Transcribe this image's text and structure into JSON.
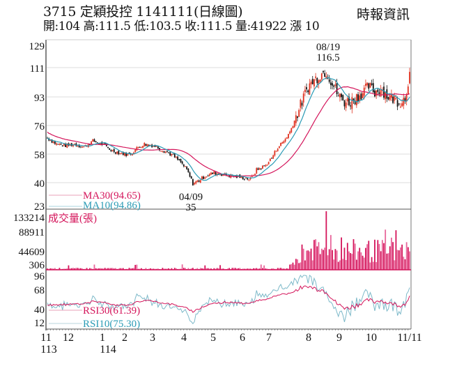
{
  "header": {
    "title": "3715  定穎投控 1141111(日線圖)",
    "quote": "開:104 高:111.5 低:103.5 收:111.5 量:41922 漲 10",
    "source": "時報資訊"
  },
  "colors": {
    "up": "#e0301e",
    "down": "#111111",
    "ma30": "#d4145a",
    "ma10": "#2a9bb5",
    "rsi30": "#d4145a",
    "rsi10": "#6fb2c4",
    "volume": "#e0306e",
    "grid": "#d8d8d8",
    "frame": "#555555"
  },
  "chart_data": [
    {
      "type": "candlestick",
      "title": "3715 定穎投控 1141111(日線圖)",
      "ylim": [
        23,
        129
      ],
      "yticks": [
        129,
        111,
        93,
        76,
        58,
        40,
        23
      ],
      "x_month_labels": [
        "11",
        "12",
        "1",
        "2",
        "3",
        "4",
        "5",
        "6",
        "7",
        "8",
        "9",
        "10",
        "11/11"
      ],
      "x_year_labels": [
        "113",
        "114"
      ],
      "annotations": [
        {
          "label": "08/19",
          "value": "116.5",
          "type": "high"
        },
        {
          "label": "04/09",
          "value": "35",
          "type": "low"
        }
      ],
      "legend": [
        {
          "name": "MA30",
          "value": "MA30(94.65)"
        },
        {
          "name": "MA10",
          "value": "MA10(94.86)"
        }
      ],
      "last_bar": {
        "open": 104,
        "high": 111.5,
        "low": 103.5,
        "close": 111.5,
        "volume": 41922,
        "change": 10
      },
      "close_series_monthly_approx": {
        "months": [
          "11",
          "12",
          "1",
          "2",
          "3",
          "4",
          "5",
          "6",
          "7",
          "8",
          "9",
          "10",
          "11/11"
        ],
        "close": [
          68,
          64,
          62,
          60,
          63,
          50,
          42,
          43,
          41,
          90,
          110,
          96,
          111.5
        ]
      },
      "ma30_series_approx": [
        72,
        69,
        65,
        62,
        60,
        61,
        58,
        52,
        45,
        42,
        43,
        42,
        43,
        60,
        85,
        96,
        94.65
      ],
      "ma10_series_approx": [
        68,
        64,
        63,
        64,
        59,
        61,
        63,
        56,
        44,
        40,
        42,
        43,
        42,
        55,
        82,
        106,
        95,
        94.86
      ]
    },
    {
      "type": "bar",
      "title": "成交量(張)",
      "ylim": [
        306,
        133214
      ],
      "yticks": [
        133214,
        88911,
        44609,
        306
      ],
      "peak": {
        "month": "8",
        "value": 133214
      },
      "last_value": 41922
    },
    {
      "type": "line",
      "title": "RSI",
      "ylim": [
        12,
        96
      ],
      "yticks": [
        96,
        68,
        40,
        12
      ],
      "series": [
        {
          "name": "RSI30",
          "label": "RSI30(61.39)",
          "last": 61.39
        },
        {
          "name": "RSI10",
          "label": "RSI10(75.30)",
          "last": 75.3
        }
      ]
    }
  ],
  "panels": {
    "price": {
      "yticks": [
        "129",
        "111",
        "93",
        "76",
        "58",
        "40",
        "23"
      ],
      "legend_ma30": "MA30(94.65)",
      "legend_ma10": "MA10(94.86)",
      "high_date": "08/19",
      "high_value": "116.5",
      "low_date": "04/09",
      "low_value": "35"
    },
    "volume": {
      "title": "成交量(張)",
      "yticks": [
        "133214",
        "88911",
        "44609",
        "306"
      ]
    },
    "rsi": {
      "yticks": [
        "96",
        "68",
        "40",
        "12"
      ],
      "legend_rsi30": "RSI30(61.39)",
      "legend_rsi10": "RSI10(75.30)"
    },
    "xaxis": {
      "months": [
        "11",
        "12",
        "1",
        "2",
        "3",
        "4",
        "5",
        "6",
        "7",
        "8",
        "9",
        "10",
        "11/11"
      ],
      "year_113": "113",
      "year_114": "114"
    }
  }
}
